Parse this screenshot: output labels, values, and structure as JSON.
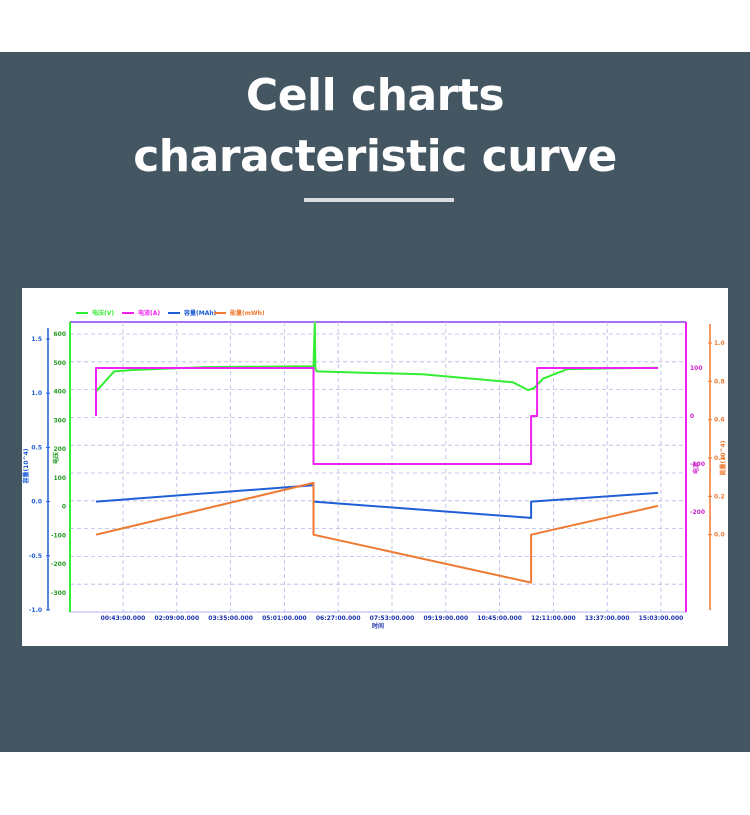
{
  "header": {
    "title_line1": "Cell  charts",
    "title_line2": "characteristic curve"
  },
  "chart_data": {
    "type": "line",
    "xlabel": "时间",
    "x_ticks": [
      "00:43:00.000",
      "02:09:00.000",
      "03:35:00.000",
      "05:01:00.000",
      "06:27:00.000",
      "07:53:00.000",
      "09:19:00.000",
      "10:45:00.000",
      "12:11:00.000",
      "13:37:00.000",
      "15:03:00.000"
    ],
    "left_outer_axis": {
      "label": "容量(10^4)",
      "ticks": [
        "1.5",
        "1.0",
        "0.5",
        "0.0",
        "-0.5",
        "-1.0"
      ],
      "ylim": [
        -1.0,
        1.5
      ]
    },
    "left_inner_axis": {
      "label": "电压",
      "ticks": [
        "600",
        "500",
        "400",
        "300",
        "200",
        "100",
        "0",
        "-100",
        "-200",
        "-300"
      ],
      "ylim": [
        -300,
        600
      ]
    },
    "right_inner_axis": {
      "label": "电流",
      "ticks": [
        "100",
        "0",
        "-100",
        "-200"
      ],
      "ylim": [
        -300,
        100
      ]
    },
    "right_outer_axis": {
      "label": "能量(10^4)",
      "ticks": [
        "1.0",
        "0.8",
        "0.6",
        "0.4",
        "0.2",
        "0.0"
      ],
      "ylim": [
        -0.2,
        1.0
      ]
    },
    "series": [
      {
        "name": "电压(V)",
        "color": "#33ee33",
        "axis": "left_inner_axis",
        "x": [
          "00:00",
          "00:30",
          "01:00",
          "03:00",
          "06:00",
          "06:02",
          "06:03",
          "06:05",
          "09:00",
          "11:30",
          "11:55",
          "12:05",
          "12:20",
          "13:00",
          "15:30"
        ],
        "values": [
          400,
          470,
          475,
          485,
          488,
          640,
          480,
          470,
          460,
          432,
          405,
          412,
          445,
          478,
          483
        ]
      },
      {
        "name": "电流(A)",
        "color": "#ee22ee",
        "axis": "right_inner_axis",
        "x": [
          "00:00",
          "00:00",
          "06:00",
          "06:00",
          "12:00",
          "12:00",
          "12:10",
          "12:10",
          "15:30"
        ],
        "values": [
          0,
          100,
          100,
          -100,
          -100,
          0,
          0,
          100,
          100
        ]
      },
      {
        "name": "容量(MAh)",
        "color": "#1f5fd6",
        "axis": "left_outer_axis",
        "x": [
          "00:00",
          "06:00",
          "06:00",
          "12:00",
          "12:00",
          "15:30"
        ],
        "values": [
          0.0,
          0.15,
          0.0,
          -0.15,
          0.0,
          0.08
        ]
      },
      {
        "name": "能量(mWh)",
        "color": "#ee7a33",
        "axis": "right_outer_axis",
        "x": [
          "00:00",
          "06:00",
          "06:00",
          "12:00",
          "12:00",
          "15:30"
        ],
        "values": [
          0.0,
          0.27,
          0.0,
          -0.25,
          0.0,
          0.15
        ]
      }
    ],
    "legend": "top-left"
  }
}
